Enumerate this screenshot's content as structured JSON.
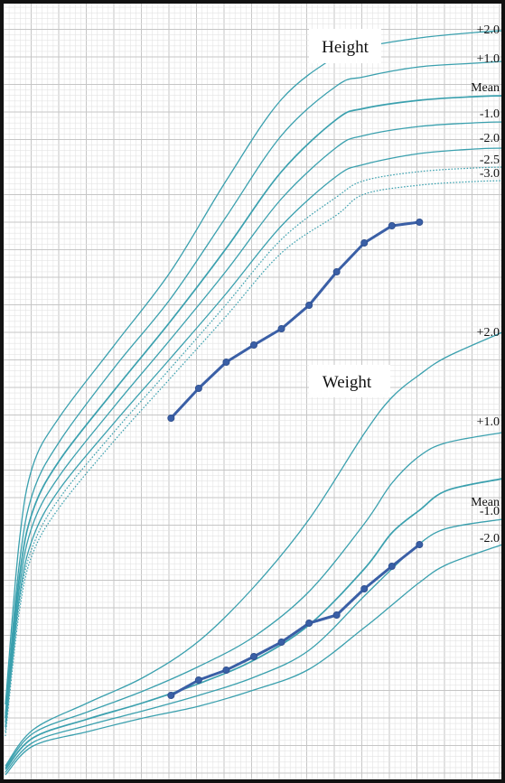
{
  "chart_data": [
    {
      "type": "line",
      "title": "Height",
      "series": [
        {
          "name": "+2.0",
          "style": "solid",
          "points": [
            [
              0,
              780
            ],
            [
              0.5,
              600
            ],
            [
              1,
              515
            ],
            [
              2,
              460
            ],
            [
              4,
              380
            ],
            [
              6,
              300
            ],
            [
              8,
              200
            ],
            [
              10,
              110
            ],
            [
              12,
              62
            ],
            [
              13,
              52
            ],
            [
              15,
              42
            ],
            [
              17,
              36
            ],
            [
              18,
              34
            ]
          ]
        },
        {
          "name": "+1.0",
          "style": "solid",
          "points": [
            [
              0,
              790
            ],
            [
              0.5,
              625
            ],
            [
              1,
              545
            ],
            [
              2,
              487
            ],
            [
              4,
              405
            ],
            [
              6,
              330
            ],
            [
              8,
              240
            ],
            [
              10,
              150
            ],
            [
              12,
              95
            ],
            [
              13,
              85
            ],
            [
              15,
              74
            ],
            [
              17,
              70
            ],
            [
              18,
              68
            ]
          ]
        },
        {
          "name": "Mean",
          "style": "solid",
          "points": [
            [
              0,
              795
            ],
            [
              0.5,
              640
            ],
            [
              1,
              565
            ],
            [
              2,
              508
            ],
            [
              4,
              430
            ],
            [
              6,
              355
            ],
            [
              8,
              275
            ],
            [
              10,
              190
            ],
            [
              12,
              132
            ],
            [
              13,
              120
            ],
            [
              15,
              111
            ],
            [
              17,
              107
            ],
            [
              18,
              106
            ]
          ]
        },
        {
          "name": "-1.0",
          "style": "solid",
          "points": [
            [
              0,
              800
            ],
            [
              0.5,
              652
            ],
            [
              1,
              580
            ],
            [
              2,
              525
            ],
            [
              4,
              448
            ],
            [
              6,
              375
            ],
            [
              8,
              300
            ],
            [
              10,
              220
            ],
            [
              12,
              163
            ],
            [
              13,
              150
            ],
            [
              15,
              140
            ],
            [
              17,
              136
            ],
            [
              18,
              135
            ]
          ]
        },
        {
          "name": "-2.0",
          "style": "solid",
          "points": [
            [
              0,
              805
            ],
            [
              0.5,
              663
            ],
            [
              1,
              595
            ],
            [
              2,
              540
            ],
            [
              4,
              466
            ],
            [
              6,
              396
            ],
            [
              8,
              325
            ],
            [
              10,
              250
            ],
            [
              12,
              195
            ],
            [
              13,
              182
            ],
            [
              15,
              170
            ],
            [
              17,
              165
            ],
            [
              18,
              164
            ]
          ]
        },
        {
          "name": "-2.5",
          "style": "dotted",
          "points": [
            [
              0,
              810
            ],
            [
              0.5,
              670
            ],
            [
              1,
              604
            ],
            [
              2,
              550
            ],
            [
              4,
              476
            ],
            [
              6,
              407
            ],
            [
              8,
              337
            ],
            [
              10,
              265
            ],
            [
              12,
              218
            ],
            [
              13,
              200
            ],
            [
              15,
              190
            ],
            [
              17,
              186
            ],
            [
              18,
              185
            ]
          ]
        },
        {
          "name": "-3.0",
          "style": "dotted",
          "points": [
            [
              0,
              815
            ],
            [
              0.5,
              678
            ],
            [
              1,
              612
            ],
            [
              2,
              560
            ],
            [
              4,
              486
            ],
            [
              6,
              418
            ],
            [
              8,
              350
            ],
            [
              10,
              280
            ],
            [
              12,
              238
            ],
            [
              13,
              215
            ],
            [
              15,
              205
            ],
            [
              17,
              201
            ],
            [
              18,
              200
            ]
          ]
        }
      ],
      "patient": {
        "x": [
          6,
          7,
          8,
          9,
          10,
          11,
          12,
          13,
          14,
          15
        ],
        "y": [
          463,
          430,
          401,
          382,
          364,
          338,
          301,
          269,
          250,
          246
        ]
      },
      "label_y": {
        "+2.0": 37,
        "+1.0": 69,
        "Mean": 101,
        "-1.0": 130,
        "-2.0": 157,
        "-2.5": 181,
        "-3.0": 196
      }
    },
    {
      "type": "line",
      "title": "Weight",
      "series": [
        {
          "name": "+2.0",
          "style": "solid",
          "points": [
            [
              0,
              848
            ],
            [
              1,
              808
            ],
            [
              3,
              778
            ],
            [
              5,
              750
            ],
            [
              7,
              710
            ],
            [
              9,
              650
            ],
            [
              11,
              575
            ],
            [
              13,
              480
            ],
            [
              14,
              440
            ],
            [
              15,
              415
            ],
            [
              16,
              395
            ],
            [
              18,
              368
            ]
          ]
        },
        {
          "name": "+1.0",
          "style": "solid",
          "points": [
            [
              0,
              850
            ],
            [
              1,
              812
            ],
            [
              3,
              788
            ],
            [
              5,
              765
            ],
            [
              7,
              738
            ],
            [
              9,
              705
            ],
            [
              11,
              655
            ],
            [
              13,
              580
            ],
            [
              14,
              535
            ],
            [
              15,
              505
            ],
            [
              16,
              490
            ],
            [
              18,
              479
            ]
          ]
        },
        {
          "name": "Mean",
          "style": "solid",
          "points": [
            [
              0,
              852
            ],
            [
              1,
              817
            ],
            [
              3,
              796
            ],
            [
              5,
              778
            ],
            [
              7,
              757
            ],
            [
              9,
              731
            ],
            [
              11,
              692
            ],
            [
              13,
              630
            ],
            [
              14,
              590
            ],
            [
              15,
              565
            ],
            [
              16,
              543
            ],
            [
              18,
              530
            ]
          ]
        },
        {
          "name": "-1.0",
          "style": "solid",
          "points": [
            [
              0,
              855
            ],
            [
              1,
              822
            ],
            [
              3,
              803
            ],
            [
              5,
              787
            ],
            [
              7,
              770
            ],
            [
              9,
              750
            ],
            [
              11,
              720
            ],
            [
              13,
              660
            ],
            [
              14,
              630
            ],
            [
              15,
              602
            ],
            [
              16,
              585
            ],
            [
              18,
              575
            ]
          ]
        },
        {
          "name": "-2.0",
          "style": "solid",
          "points": [
            [
              0,
              858
            ],
            [
              1,
              826
            ],
            [
              3,
              810
            ],
            [
              5,
              795
            ],
            [
              7,
              782
            ],
            [
              9,
              764
            ],
            [
              11,
              741
            ],
            [
              13,
              695
            ],
            [
              14,
              670
            ],
            [
              15,
              645
            ],
            [
              16,
              625
            ],
            [
              18,
              603
            ]
          ]
        }
      ],
      "patient": {
        "x": [
          6,
          7,
          8,
          9,
          10,
          11,
          12,
          13,
          14,
          15
        ],
        "y": [
          770,
          753,
          742,
          727,
          711,
          690,
          681,
          652,
          627,
          603
        ]
      },
      "label_y": {
        "+2.0": 372,
        "+1.0": 471,
        "Mean": 560,
        "-1.0": 570,
        "-2.0": 600
      }
    }
  ],
  "title_height": "Height",
  "title_weight": "Weight",
  "colors": {
    "curve": "#3aa0ae",
    "patient": "#3a5fa6",
    "grid_major": "#c6c6c6",
    "grid_minor": "#e3e3e3"
  }
}
